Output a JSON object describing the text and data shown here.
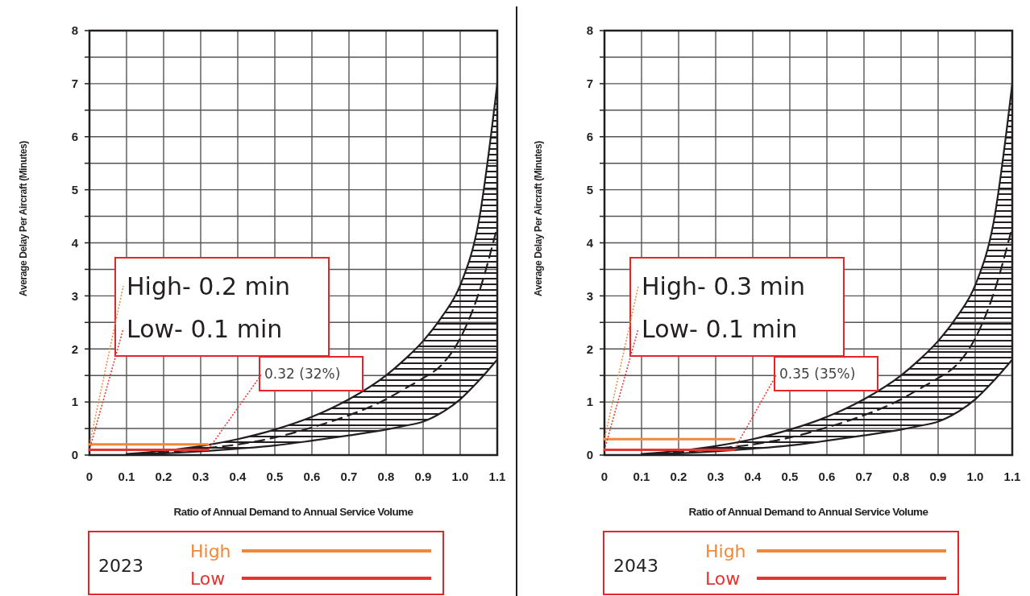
{
  "chart_data": [
    {
      "type": "line",
      "xlabel": "Ratio of Annual Demand to Annual Service Volume",
      "ylabel": "Average Delay Per Aircraft (Minutes)",
      "legend_title": "2023",
      "legend": "bottom",
      "grid": true,
      "xlim": [
        0,
        1.1
      ],
      "xticks": [
        0,
        0.1,
        0.2,
        0.3,
        0.4,
        0.5,
        0.6,
        0.7,
        0.8,
        0.9,
        {
          "value": 1,
          "label": "1.0"
        },
        1.1
      ],
      "ylim": [
        0,
        8
      ],
      "yticks": [
        0,
        {
          "value": 0.5,
          "label": null
        },
        1,
        {
          "value": 1.5,
          "label": null
        },
        2,
        {
          "value": 2.5,
          "label": null
        },
        3,
        {
          "value": 3.5,
          "label": null
        },
        4,
        {
          "value": 4.5,
          "label": null
        },
        5,
        {
          "value": 5.5,
          "label": null
        },
        6,
        {
          "value": 6.5,
          "label": null
        },
        7,
        {
          "value": 7.5,
          "label": null
        },
        8
      ],
      "series": [
        {
          "color": "#231f20",
          "x": [
            0.1,
            0.2,
            0.3,
            0.4,
            0.5,
            0.6,
            0.7,
            0.8,
            0.85,
            0.9,
            0.95,
            1.0,
            1.05,
            1.1
          ],
          "values": [
            0.02,
            0.08,
            0.17,
            0.3,
            0.48,
            0.72,
            1.05,
            1.5,
            1.8,
            2.15,
            2.6,
            3.2,
            4.4,
            7.0
          ]
        },
        {
          "color": "#231f20",
          "line_style": "dashed",
          "x": [
            0.1,
            0.2,
            0.3,
            0.4,
            0.5,
            0.6,
            0.7,
            0.8,
            0.85,
            0.9,
            0.95,
            1.0,
            1.05,
            1.1
          ],
          "values": [
            0.01,
            0.05,
            0.12,
            0.2,
            0.33,
            0.52,
            0.75,
            1.05,
            1.25,
            1.45,
            1.7,
            2.2,
            3.05,
            4.3
          ],
          "lower": [
            0,
            0.03,
            0.07,
            0.12,
            0.18,
            0.27,
            0.37,
            0.48,
            0.55,
            0.63,
            0.8,
            1.05,
            1.4,
            1.8
          ],
          "upper": [
            0.02,
            0.08,
            0.17,
            0.3,
            0.48,
            0.72,
            1.05,
            1.5,
            1.8,
            2.15,
            2.6,
            3.2,
            4.4,
            7.0
          ]
        },
        {
          "color": "#231f20",
          "x": [
            0.1,
            0.2,
            0.3,
            0.4,
            0.5,
            0.6,
            0.7,
            0.8,
            0.85,
            0.9,
            0.95,
            1.0,
            1.05,
            1.1
          ],
          "values": [
            0,
            0.03,
            0.07,
            0.12,
            0.18,
            0.27,
            0.37,
            0.48,
            0.55,
            0.63,
            0.8,
            1.05,
            1.4,
            1.8
          ]
        },
        {
          "name": "High",
          "color": "#f0883a",
          "x": [
            0,
            0.32
          ],
          "values": [
            0.2,
            0.2
          ]
        },
        {
          "name": "Low",
          "color": "#e8332f",
          "x": [
            0,
            0.32
          ],
          "values": [
            0.1,
            0.1
          ]
        }
      ],
      "annotations": [
        {
          "text": "High- 0.2 min",
          "x": 0,
          "y": 0.2
        },
        {
          "text": "Low- 0.1 min",
          "x": 0,
          "y": 0.1
        },
        {
          "text": "0.32 (32%)",
          "x": 0.32,
          "y": 0.1
        }
      ]
    },
    {
      "type": "line",
      "xlabel": "Ratio of Annual Demand to Annual Service Volume",
      "ylabel": "Average Delay Per Aircraft (Minutes)",
      "legend_title": "2043",
      "legend": "bottom",
      "grid": true,
      "xlim": [
        0,
        1.1
      ],
      "xticks": [
        0,
        0.1,
        0.2,
        0.3,
        0.4,
        0.5,
        0.6,
        0.7,
        0.8,
        0.9,
        {
          "value": 1,
          "label": "1.0"
        },
        1.1
      ],
      "ylim": [
        0,
        8
      ],
      "yticks": [
        0,
        {
          "value": 0.5,
          "label": null
        },
        1,
        {
          "value": 1.5,
          "label": null
        },
        2,
        {
          "value": 2.5,
          "label": null
        },
        3,
        {
          "value": 3.5,
          "label": null
        },
        4,
        {
          "value": 4.5,
          "label": null
        },
        5,
        {
          "value": 5.5,
          "label": null
        },
        6,
        {
          "value": 6.5,
          "label": null
        },
        7,
        {
          "value": 7.5,
          "label": null
        },
        8
      ],
      "series": [
        {
          "color": "#231f20",
          "x": [
            0.1,
            0.2,
            0.3,
            0.4,
            0.5,
            0.6,
            0.7,
            0.8,
            0.85,
            0.9,
            0.95,
            1.0,
            1.05,
            1.1
          ],
          "values": [
            0.02,
            0.08,
            0.17,
            0.3,
            0.48,
            0.72,
            1.05,
            1.5,
            1.8,
            2.15,
            2.6,
            3.2,
            4.4,
            7.0
          ]
        },
        {
          "color": "#231f20",
          "line_style": "dashed",
          "x": [
            0.1,
            0.2,
            0.3,
            0.4,
            0.5,
            0.6,
            0.7,
            0.8,
            0.85,
            0.9,
            0.95,
            1.0,
            1.05,
            1.1
          ],
          "values": [
            0.01,
            0.05,
            0.12,
            0.2,
            0.33,
            0.52,
            0.75,
            1.05,
            1.25,
            1.45,
            1.7,
            2.2,
            3.05,
            4.3
          ],
          "lower": [
            0,
            0.03,
            0.07,
            0.12,
            0.18,
            0.27,
            0.37,
            0.48,
            0.55,
            0.63,
            0.8,
            1.05,
            1.4,
            1.8
          ],
          "upper": [
            0.02,
            0.08,
            0.17,
            0.3,
            0.48,
            0.72,
            1.05,
            1.5,
            1.8,
            2.15,
            2.6,
            3.2,
            4.4,
            7.0
          ]
        },
        {
          "color": "#231f20",
          "x": [
            0.1,
            0.2,
            0.3,
            0.4,
            0.5,
            0.6,
            0.7,
            0.8,
            0.85,
            0.9,
            0.95,
            1.0,
            1.05,
            1.1
          ],
          "values": [
            0,
            0.03,
            0.07,
            0.12,
            0.18,
            0.27,
            0.37,
            0.48,
            0.55,
            0.63,
            0.8,
            1.05,
            1.4,
            1.8
          ]
        },
        {
          "name": "High",
          "color": "#f0883a",
          "x": [
            0,
            0.35
          ],
          "values": [
            0.3,
            0.3
          ]
        },
        {
          "name": "Low",
          "color": "#e8332f",
          "x": [
            0,
            0.35
          ],
          "values": [
            0.1,
            0.1
          ]
        }
      ],
      "annotations": [
        {
          "text": "High- 0.3 min",
          "x": 0,
          "y": 0.3
        },
        {
          "text": "Low- 0.1 min",
          "x": 0,
          "y": 0.1
        },
        {
          "text": "0.35 (35%)",
          "x": 0.35,
          "y": 0.1
        }
      ]
    }
  ]
}
